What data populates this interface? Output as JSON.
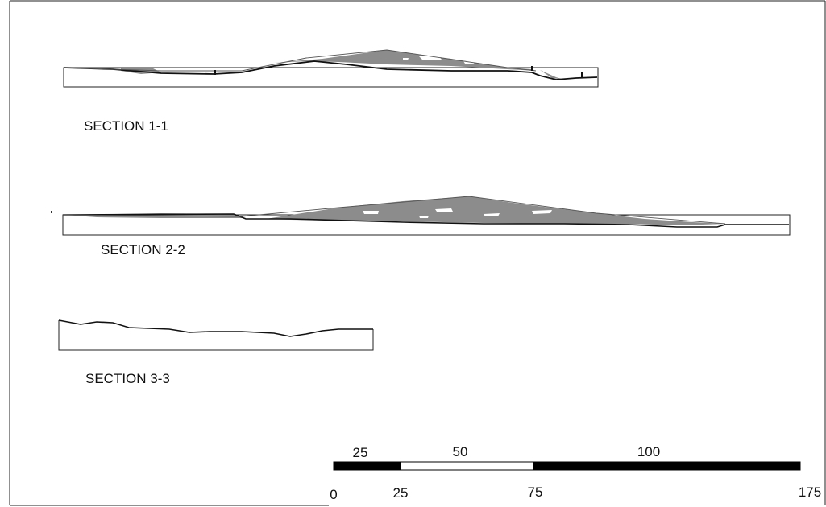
{
  "sections": [
    {
      "label": "SECTION  1-1"
    },
    {
      "label": "SECTION  2-2"
    },
    {
      "label": "SECTION 3-3"
    }
  ],
  "scale_bar": {
    "segment_labels": [
      "25",
      "50",
      "100"
    ],
    "tick_labels": [
      "0",
      "25",
      "75",
      "175"
    ]
  },
  "colors": {
    "fill_gray": "#8c8c8c",
    "line": "#1a1a1a",
    "bar_black": "#000000"
  }
}
